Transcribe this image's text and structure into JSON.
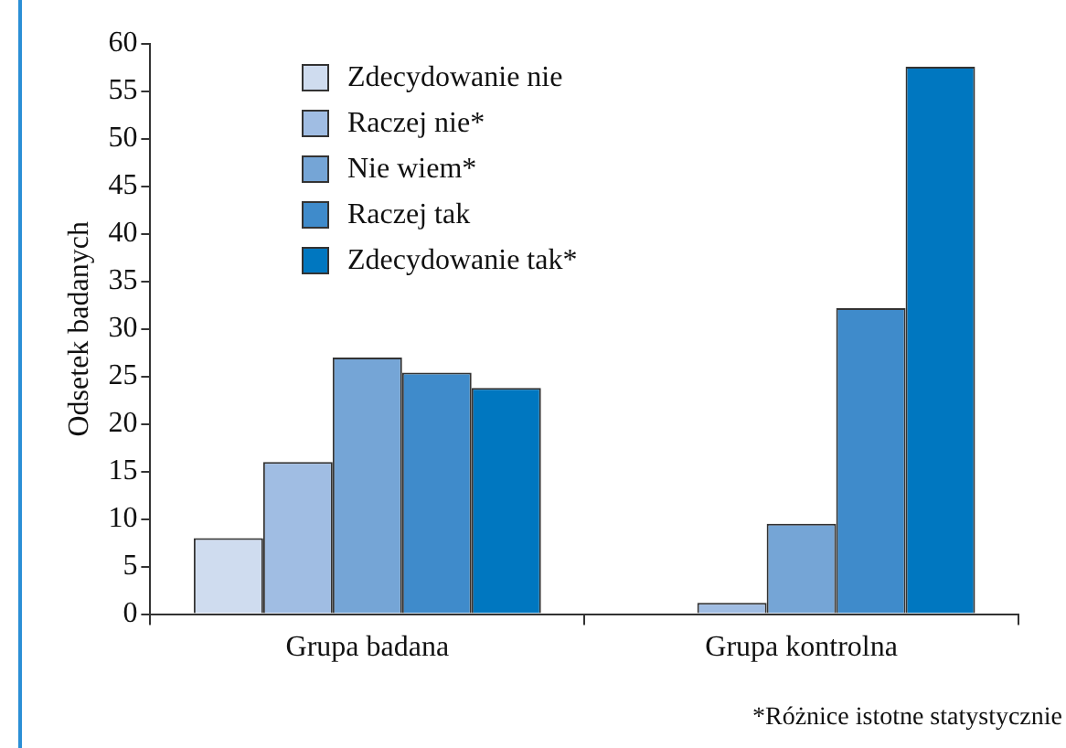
{
  "chart_data": {
    "type": "bar",
    "ylabel": "Odsetek badanych",
    "categories": [
      "Grupa badana",
      "Grupa kontrolna"
    ],
    "series": [
      {
        "name": "Zdecydowanie nie",
        "color": "#cfdcef",
        "values": [
          8,
          0
        ]
      },
      {
        "name": "Raczej nie*",
        "color": "#a0bde3",
        "values": [
          16,
          1.2
        ]
      },
      {
        "name": "Nie wiem*",
        "color": "#75a5d6",
        "values": [
          27,
          9.5
        ]
      },
      {
        "name": "Raczej tak",
        "color": "#3f8bcb",
        "values": [
          25.4,
          32.2
        ]
      },
      {
        "name": "Zdecydowanie tak*",
        "color": "#0077c0",
        "values": [
          23.8,
          57.6
        ]
      }
    ],
    "ylim": [
      0,
      60
    ],
    "yticks": [
      0,
      5,
      10,
      15,
      20,
      25,
      30,
      35,
      40,
      45,
      50,
      55,
      60
    ],
    "grid": false,
    "legend": "top",
    "annotations": [
      "*Różnice istotne statystycznie"
    ]
  }
}
